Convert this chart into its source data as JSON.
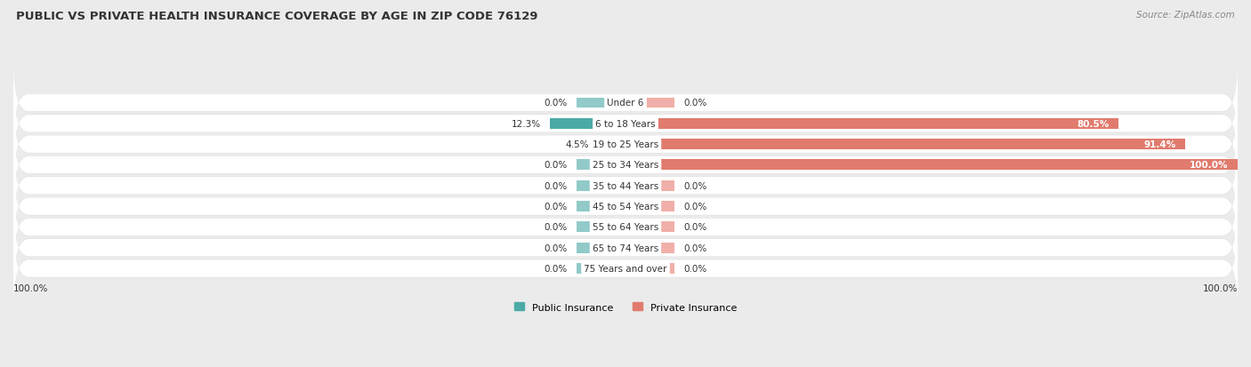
{
  "title": "PUBLIC VS PRIVATE HEALTH INSURANCE COVERAGE BY AGE IN ZIP CODE 76129",
  "source": "Source: ZipAtlas.com",
  "categories": [
    "Under 6",
    "6 to 18 Years",
    "19 to 25 Years",
    "25 to 34 Years",
    "35 to 44 Years",
    "45 to 54 Years",
    "55 to 64 Years",
    "65 to 74 Years",
    "75 Years and over"
  ],
  "public_values": [
    0.0,
    12.3,
    4.5,
    0.0,
    0.0,
    0.0,
    0.0,
    0.0,
    0.0
  ],
  "private_values": [
    0.0,
    80.5,
    91.4,
    100.0,
    0.0,
    0.0,
    0.0,
    0.0,
    0.0
  ],
  "public_color_strong": "#4BAAA5",
  "public_color_light": "#91CAC8",
  "private_color_strong": "#E07B6E",
  "private_color_light": "#F0AFA8",
  "background_color": "#EBEBEB",
  "bar_bg_color": "#FFFFFF",
  "bar_bg_shadow": "#DDDDDD",
  "xlim_abs": 100,
  "bar_height": 0.62,
  "stub_size": 8.0,
  "legend_labels": [
    "Public Insurance",
    "Private Insurance"
  ],
  "axis_label_left": "100.0%",
  "axis_label_right": "100.0%",
  "title_fontsize": 9.5,
  "label_fontsize": 7.5,
  "value_fontsize": 7.5
}
